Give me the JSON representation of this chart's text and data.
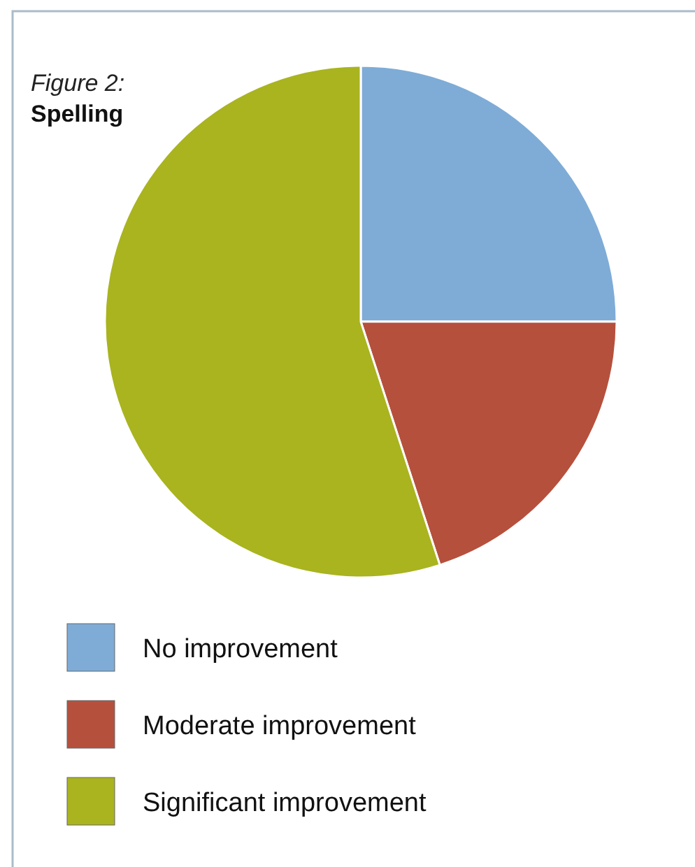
{
  "chart_data": {
    "type": "pie",
    "title": "Figure 2:",
    "subtitle": "Spelling",
    "categories": [
      "No improvement",
      "Moderate improvement",
      "Significant improvement"
    ],
    "values": [
      25,
      20,
      55
    ],
    "colors": [
      "#7eacd7",
      "#b5503d",
      "#a9b41f"
    ],
    "legend": "bottom"
  }
}
